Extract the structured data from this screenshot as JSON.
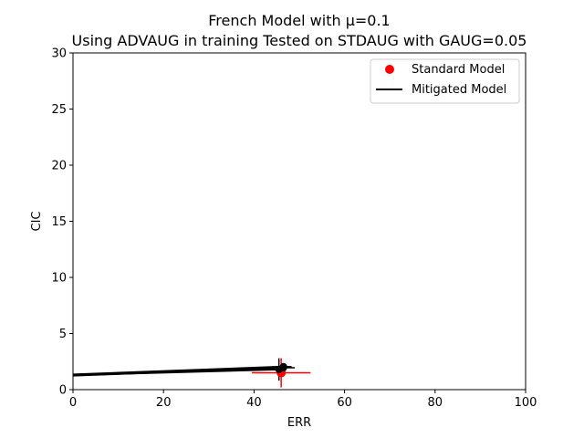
{
  "chart_data": {
    "type": "scatter",
    "title": "French Model with μ=0.1",
    "subtitle": "Using ADVAUG in training Tested on STDAUG with GAUG=0.05",
    "xlabel": "ERR",
    "ylabel": "CIC",
    "xlim": [
      0,
      100
    ],
    "ylim": [
      0,
      30
    ],
    "xticks": [
      "0",
      "20",
      "40",
      "60",
      "80",
      "100"
    ],
    "yticks": [
      "0",
      "5",
      "10",
      "15",
      "20",
      "25",
      "30"
    ],
    "grid": false,
    "legend_position": "top-right",
    "colors": {
      "standard": "#ff0000",
      "mitigated": "#000000"
    },
    "series": [
      {
        "name": "Standard Model",
        "kind": "scatter-errorbar",
        "color": "#ff0000",
        "points": [
          {
            "x": 46.0,
            "y": 1.5,
            "xerr": 6.5,
            "yerr": 1.3
          }
        ]
      },
      {
        "name": "Mitigated Model",
        "kind": "lines-errorbar",
        "color": "#000000",
        "lines": [
          {
            "x": [
              0,
              46.5
            ],
            "y": [
              1.35,
              2.05
            ]
          },
          {
            "x": [
              0,
              46.5
            ],
            "y": [
              1.25,
              1.95
            ]
          },
          {
            "x": [
              0,
              45.5
            ],
            "y": [
              1.3,
              1.8
            ]
          }
        ],
        "points": [
          {
            "x": 46.5,
            "y": 2.05,
            "xerr": 1.8,
            "yerr": 0.3
          },
          {
            "x": 46.5,
            "y": 1.95,
            "xerr": 2.5,
            "yerr": 0.3
          },
          {
            "x": 45.5,
            "y": 1.8,
            "xerr": 1.2,
            "yerr": 1.0
          }
        ]
      }
    ]
  }
}
